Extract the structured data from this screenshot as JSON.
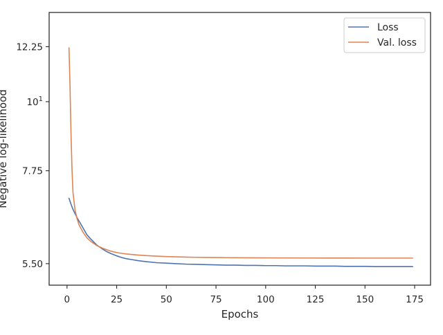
{
  "chart_data": {
    "type": "line",
    "title": "",
    "xlabel": "Epochs",
    "ylabel": "Negative log-likelihood",
    "xlim": [
      -9,
      183
    ],
    "ylim": [
      5.08,
      13.9
    ],
    "yscale": "log",
    "x_ticks": [
      0,
      25,
      50,
      75,
      100,
      125,
      150,
      175
    ],
    "x_tick_labels": [
      "0",
      "25",
      "50",
      "75",
      "100",
      "125",
      "150",
      "175"
    ],
    "y_ticks": [
      5.5,
      7.75,
      10,
      12.25
    ],
    "y_tick_labels": [
      "5.50",
      "7.75",
      "10",
      "12.25"
    ],
    "y_tick_superscripts": [
      "",
      "",
      "1",
      ""
    ],
    "grid": false,
    "legend_position": "top-right",
    "series": [
      {
        "name": "Loss",
        "color": "#4c72b0",
        "x": [
          1,
          2,
          3,
          4,
          5,
          6,
          8,
          10,
          12,
          15,
          18,
          20,
          22,
          25,
          28,
          30,
          33,
          36,
          40,
          45,
          50,
          55,
          60,
          65,
          70,
          75,
          80,
          85,
          90,
          95,
          100,
          105,
          110,
          115,
          120,
          125,
          130,
          135,
          140,
          145,
          150,
          155,
          160,
          165,
          170,
          174
        ],
        "y": [
          7.0,
          6.85,
          6.72,
          6.62,
          6.52,
          6.44,
          6.28,
          6.12,
          6.02,
          5.89,
          5.8,
          5.75,
          5.71,
          5.66,
          5.62,
          5.6,
          5.58,
          5.56,
          5.54,
          5.52,
          5.51,
          5.5,
          5.49,
          5.485,
          5.48,
          5.475,
          5.47,
          5.47,
          5.465,
          5.465,
          5.46,
          5.46,
          5.455,
          5.455,
          5.455,
          5.45,
          5.45,
          5.45,
          5.445,
          5.445,
          5.445,
          5.44,
          5.44,
          5.44,
          5.44,
          5.44
        ]
      },
      {
        "name": "Val. loss",
        "color": "#dd8452",
        "x": [
          1,
          1.5,
          2,
          2.5,
          3,
          4,
          5,
          6,
          8,
          10,
          12,
          15,
          18,
          20,
          22,
          25,
          28,
          30,
          35,
          40,
          45,
          50,
          55,
          60,
          65,
          70,
          75,
          80,
          90,
          100,
          110,
          120,
          130,
          140,
          150,
          160,
          170,
          174
        ],
        "y": [
          12.2,
          10.6,
          8.9,
          7.8,
          7.15,
          6.72,
          6.5,
          6.35,
          6.18,
          6.05,
          5.97,
          5.88,
          5.82,
          5.79,
          5.76,
          5.73,
          5.71,
          5.7,
          5.68,
          5.665,
          5.655,
          5.645,
          5.64,
          5.635,
          5.63,
          5.627,
          5.625,
          5.623,
          5.62,
          5.618,
          5.617,
          5.616,
          5.615,
          5.615,
          5.614,
          5.614,
          5.614,
          5.614
        ]
      }
    ]
  }
}
